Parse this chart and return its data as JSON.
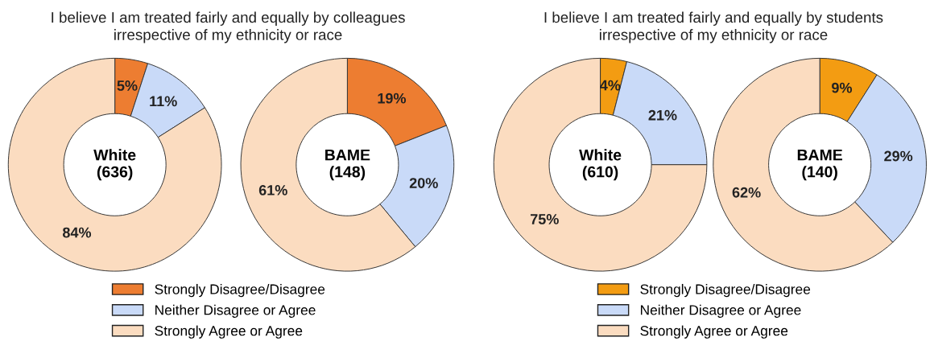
{
  "chart_data": [
    {
      "type": "donut",
      "title": "I believe I am treated fairly and equally by colleagues\nirrespective of my ethnicity or race",
      "categories": [
        "Strongly Disagree/Disagree",
        "Neither Disagree or Agree",
        "Strongly Agree or Agree"
      ],
      "values": [
        5,
        11,
        84
      ],
      "colors": [
        "#ed7d31",
        "#c9daf8",
        "#fbdcc0"
      ],
      "value_labels": [
        "5%",
        "11%",
        "84%"
      ],
      "annotations": [
        "White\n(636)"
      ],
      "legend": "bottom"
    },
    {
      "type": "donut",
      "categories": [
        null,
        null,
        null
      ],
      "values": [
        19,
        20,
        61
      ],
      "colors": [
        "#ed7d31",
        "#c9daf8",
        "#fbdcc0"
      ],
      "value_labels": [
        "19%",
        "20%",
        "61%"
      ],
      "annotations": [
        "BAME\n(148)"
      ]
    },
    {
      "type": "donut",
      "title": "I believe I am treated fairly and equally by students\nirrespective of my ethnicity or race",
      "categories": [
        "Strongly Disagree/Disagree",
        "Neither Disagree or Agree",
        "Strongly Agree or Agree"
      ],
      "values": [
        4,
        21,
        75
      ],
      "colors": [
        "#f39c12",
        "#c9daf8",
        "#fbdcc0"
      ],
      "value_labels": [
        "4%",
        "21%",
        "75%"
      ],
      "annotations": [
        "White\n(610)"
      ],
      "legend": "bottom"
    },
    {
      "type": "donut",
      "categories": [
        null,
        null,
        null
      ],
      "values": [
        9,
        29,
        62
      ],
      "colors": [
        "#f39c12",
        "#c9daf8",
        "#fbdcc0"
      ],
      "value_labels": [
        "9%",
        "29%",
        "62%"
      ],
      "annotations": [
        "BAME\n(140)"
      ]
    }
  ]
}
